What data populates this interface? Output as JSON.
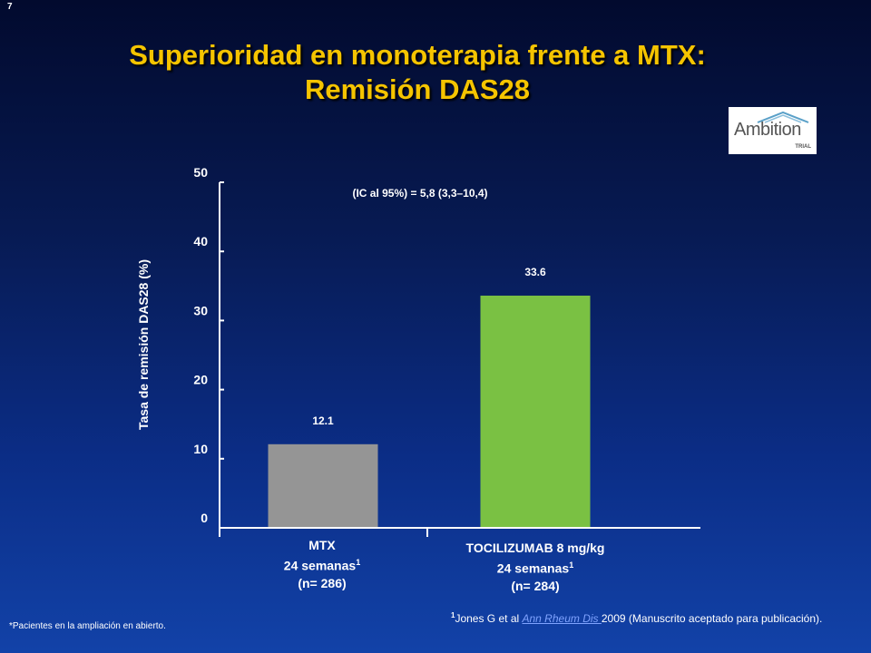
{
  "slide_number": "7",
  "title": {
    "line1": "Superioridad en monoterapia frente a MTX:",
    "line2": "Remisión DAS28"
  },
  "logo": {
    "word": "Ambition",
    "sub": "TRIAL"
  },
  "colors": {
    "title": "#f5c400",
    "bar_mtx": "#959595",
    "bar_toc": "#7ac143",
    "link": "#7fa3ff"
  },
  "chart_data": {
    "type": "bar",
    "categories": [
      "MTX",
      "TOCILIZUMAB 8 mg/kg"
    ],
    "values": [
      12.1,
      33.6
    ],
    "value_labels": [
      "12.1",
      "33.6"
    ],
    "ylabel": "Tasa de remisión DAS28 (%)",
    "ylim": [
      0,
      50
    ],
    "yticks": [
      0,
      10,
      20,
      30,
      40,
      50
    ],
    "annotation": "(IC al 95%) = 5,8 (3,3–10,4)",
    "grid": false,
    "legend": "none"
  },
  "categories_detail": [
    {
      "line1": "MTX",
      "line2": "24 semanas",
      "sup": "1",
      "line3": "(n= 286)"
    },
    {
      "line1": "TOCILIZUMAB 8 mg/kg",
      "line2": "24 semanas",
      "sup": "1",
      "line3": "(n= 284)"
    }
  ],
  "footnotes": {
    "left": "*Pacientes en la ampliación en abierto.",
    "ref_sup": "1",
    "ref_prefix": "Jones G et al ",
    "ref_link": "Ann Rheum Dis ",
    "ref_suffix": "2009 (Manuscrito aceptado para publicación)."
  }
}
